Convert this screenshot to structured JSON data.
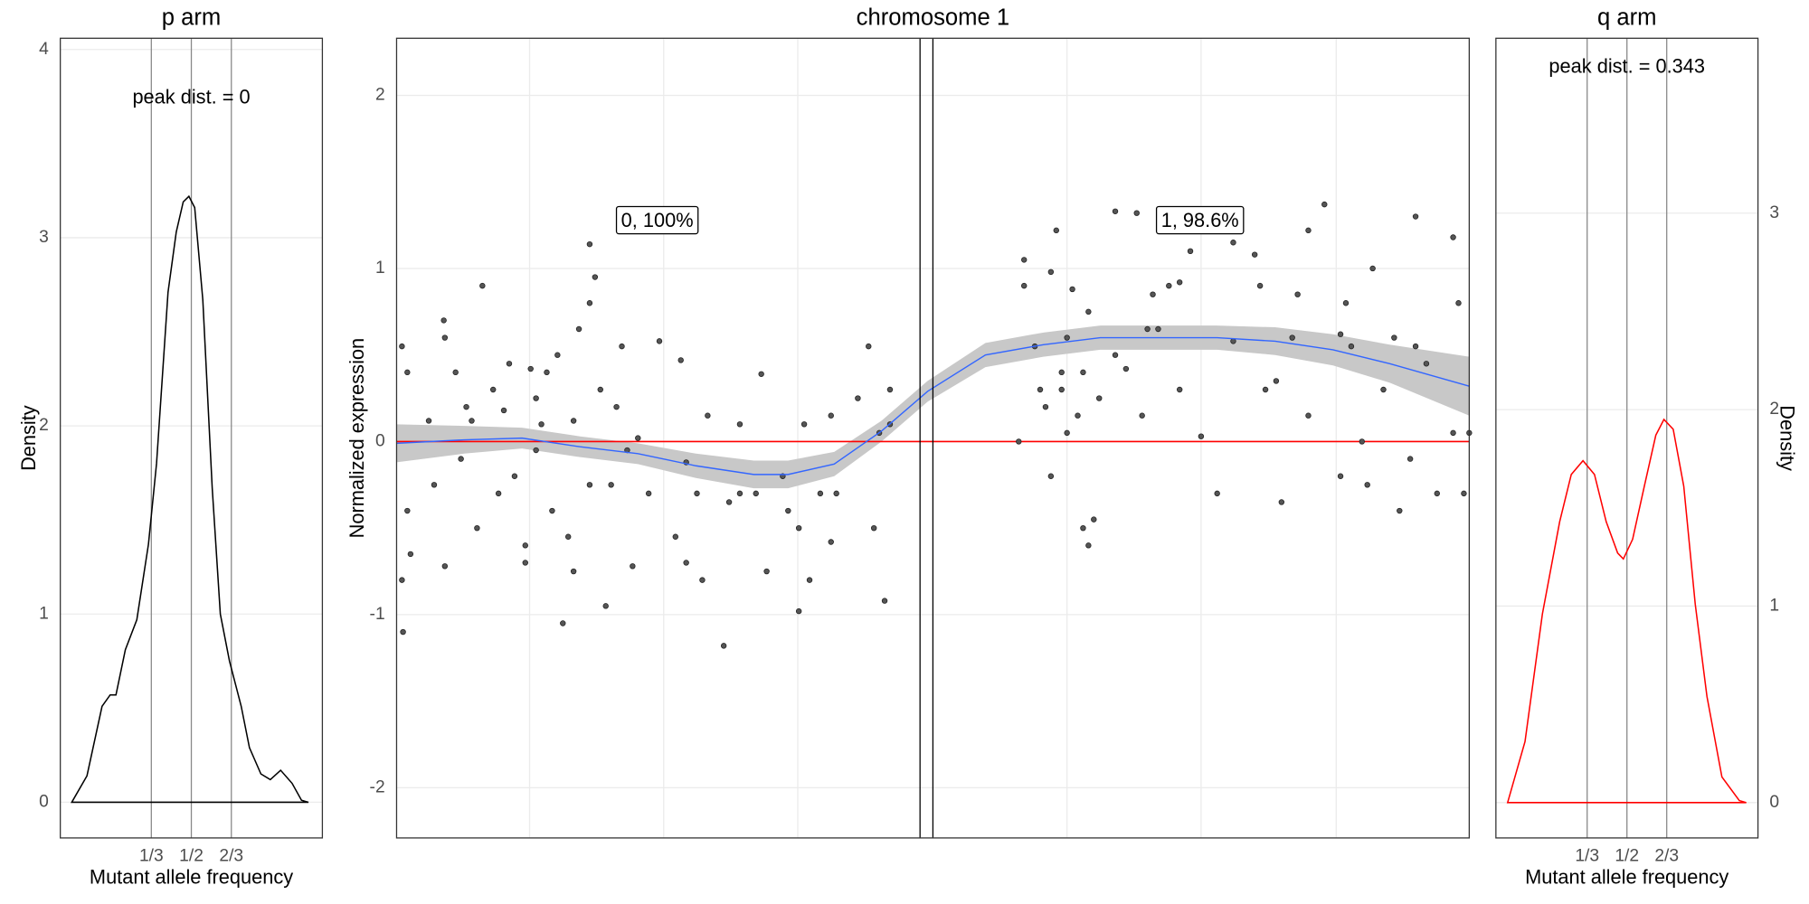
{
  "chart_data": [
    {
      "type": "line",
      "title": "p arm",
      "xlabel": "Mutant allele frequency",
      "ylabel": "Density",
      "xlim": [
        -0.046,
        1.046
      ],
      "ylim": [
        -0.19,
        4.06
      ],
      "xticks": [
        {
          "value": 0.3333,
          "label": "1/3"
        },
        {
          "value": 0.5,
          "label": "1/2"
        },
        {
          "value": 0.6667,
          "label": "2/3"
        }
      ],
      "yticks": [
        0,
        1,
        2,
        3,
        4
      ],
      "yaxis_side": "left",
      "grid": true,
      "annotations": [
        {
          "text": "peak dist. = 0",
          "x": 0.5,
          "y": 3.74
        }
      ],
      "series": [
        {
          "color": "#000000",
          "x": [
            0.002,
            0.065,
            0.128,
            0.162,
            0.186,
            0.225,
            0.273,
            0.321,
            0.355,
            0.403,
            0.437,
            0.466,
            0.49,
            0.514,
            0.548,
            0.587,
            0.621,
            0.659,
            0.708,
            0.742,
            0.79,
            0.829,
            0.872,
            0.92,
            0.959,
            0.988
          ],
          "values": [
            0,
            0.14,
            0.51,
            0.57,
            0.57,
            0.81,
            0.97,
            1.37,
            1.8,
            2.71,
            3.03,
            3.19,
            3.22,
            3.16,
            2.67,
            1.67,
            1.0,
            0.75,
            0.51,
            0.29,
            0.15,
            0.12,
            0.17,
            0.1,
            0.01,
            0
          ]
        }
      ]
    },
    {
      "type": "scatter",
      "title": "chromosome 1",
      "ylabel": "Normalized expression",
      "xlim": [
        0,
        100
      ],
      "ylim": [
        -2.29,
        2.33
      ],
      "yticks": [
        -2,
        -1,
        0,
        1,
        2
      ],
      "xgrid": [
        12.4,
        24.9,
        37.4,
        62.5,
        75,
        87.6
      ],
      "grid": true,
      "point_color": "#555555",
      "hline": 0,
      "hline_color": "#ff0000",
      "vlines": [
        48.8,
        50.0
      ],
      "annotations": [
        {
          "text": "0, 100%",
          "x": 24.3,
          "y": 1.27
        },
        {
          "text": "1, 98.6%",
          "x": 74.9,
          "y": 1.27
        }
      ],
      "x": [
        0.5,
        0.5,
        0.6,
        1,
        1,
        1.3,
        3,
        3.5,
        4.4,
        4.5,
        4.5,
        5.5,
        6,
        6.5,
        7,
        7.5,
        8,
        9,
        9.5,
        10,
        10.5,
        11,
        12,
        12,
        12.5,
        13,
        13.5,
        13,
        14,
        14.5,
        15,
        15.5,
        16,
        16.5,
        16.5,
        17,
        18,
        18,
        18,
        18.5,
        19,
        19.5,
        20,
        20.5,
        21,
        21.5,
        22,
        22.5,
        23.5,
        24.5,
        26,
        26.5,
        27,
        27,
        28,
        28.5,
        29,
        30.5,
        31,
        32,
        32,
        33.5,
        34,
        34.5,
        36,
        36.5,
        37.5,
        38,
        37.5,
        38.5,
        39.5,
        40.5,
        40.5,
        41,
        43,
        44.5,
        44,
        45,
        45.5,
        46,
        46,
        58,
        58.5,
        58.5,
        59.5,
        60,
        60.5,
        61,
        61,
        61.5,
        62,
        62,
        62.5,
        62.5,
        63,
        63.5,
        64,
        64,
        64.5,
        64.5,
        65,
        65.5,
        67,
        67,
        68,
        69,
        69.5,
        70,
        70.5,
        71,
        72,
        73,
        74,
        73,
        75,
        76.5,
        78,
        78,
        80,
        80.5,
        81,
        82,
        82.5,
        84,
        83.5,
        85,
        85,
        86.5,
        88,
        88,
        88.5,
        89,
        90,
        90.5,
        91,
        92,
        93,
        93.5,
        94.5,
        95,
        95,
        96,
        97,
        98.5,
        98.5,
        99,
        99.5,
        100
      ],
      "values": [
        0.55,
        -0.8,
        -1.1,
        0.4,
        -0.4,
        -0.65,
        0.12,
        -0.25,
        0.7,
        0.6,
        -0.72,
        0.4,
        -0.1,
        0.2,
        0.12,
        -0.5,
        0.9,
        0.3,
        -0.3,
        0.18,
        0.45,
        -0.2,
        -0.6,
        -0.7,
        0.42,
        -0.05,
        0.1,
        0.25,
        0.4,
        -0.4,
        0.5,
        -1.05,
        -0.55,
        -0.75,
        0.12,
        0.65,
        0.8,
        -0.25,
        1.14,
        0.95,
        0.3,
        -0.95,
        -0.25,
        0.2,
        0.55,
        -0.05,
        -0.72,
        0.02,
        -0.3,
        0.58,
        -0.55,
        0.47,
        -0.12,
        -0.7,
        -0.3,
        -0.8,
        0.15,
        -1.18,
        -0.35,
        -0.3,
        0.1,
        -0.3,
        0.39,
        -0.75,
        -0.2,
        -0.4,
        -0.5,
        0.1,
        -0.98,
        -0.8,
        -0.3,
        -0.58,
        0.15,
        -0.3,
        0.25,
        -0.5,
        0.55,
        0.05,
        -0.92,
        0.3,
        0.1,
        0.0,
        1.05,
        0.9,
        0.55,
        0.3,
        0.2,
        0.98,
        -0.2,
        1.22,
        0.3,
        0.4,
        0.6,
        0.05,
        0.88,
        0.15,
        0.4,
        -0.5,
        -0.6,
        0.75,
        -0.45,
        0.25,
        1.33,
        0.5,
        0.42,
        1.32,
        0.15,
        0.65,
        0.85,
        0.65,
        0.9,
        0.92,
        1.1,
        0.3,
        0.03,
        -0.3,
        0.58,
        1.15,
        1.08,
        0.9,
        0.3,
        0.35,
        -0.35,
        0.85,
        0.6,
        1.22,
        0.15,
        1.37,
        0.62,
        -0.2,
        0.8,
        0.55,
        0.0,
        -0.25,
        1.0,
        0.3,
        0.6,
        -0.4,
        -0.1,
        1.3,
        0.55,
        0.45,
        -0.3,
        0.05,
        1.18,
        0.8,
        -0.3,
        0.05
      ],
      "smooth": {
        "color": "#3366ff",
        "band_color": "#c8c8c8",
        "x": [
          0,
          6.3,
          11.7,
          17.1,
          22.5,
          27.9,
          33.3,
          36.5,
          40.8,
          45.2,
          49.5,
          54.9,
          60.3,
          65.6,
          71.1,
          76.5,
          81.9,
          87.3,
          92.6,
          100
        ],
        "values": [
          -0.01,
          0.01,
          0.02,
          -0.03,
          -0.07,
          -0.14,
          -0.19,
          -0.19,
          -0.13,
          0.06,
          0.29,
          0.5,
          0.56,
          0.6,
          0.6,
          0.6,
          0.58,
          0.53,
          0.45,
          0.32
        ],
        "lower": [
          -0.12,
          -0.07,
          -0.04,
          -0.09,
          -0.13,
          -0.21,
          -0.27,
          -0.27,
          -0.2,
          0.0,
          0.23,
          0.43,
          0.49,
          0.53,
          0.53,
          0.53,
          0.5,
          0.44,
          0.34,
          0.15
        ],
        "upper": [
          0.1,
          0.09,
          0.08,
          0.03,
          -0.01,
          -0.07,
          -0.11,
          -0.11,
          -0.06,
          0.12,
          0.35,
          0.57,
          0.63,
          0.67,
          0.67,
          0.67,
          0.66,
          0.62,
          0.56,
          0.49
        ]
      }
    },
    {
      "type": "line",
      "title": "q arm",
      "xlabel": "Mutant allele frequency",
      "ylabel": "Density",
      "xlim": [
        -0.049,
        1.049
      ],
      "ylim": [
        -0.18,
        3.89
      ],
      "xticks": [
        {
          "value": 0.3333,
          "label": "1/3"
        },
        {
          "value": 0.5,
          "label": "1/2"
        },
        {
          "value": 0.6667,
          "label": "2/3"
        }
      ],
      "yticks": [
        0,
        1,
        2,
        3
      ],
      "yaxis_side": "right",
      "grid": true,
      "annotations": [
        {
          "text": "peak dist. = 0.343",
          "x": 0.5,
          "y": 3.74
        }
      ],
      "series": [
        {
          "color": "#ff0000",
          "x": [
            0.0,
            0.073,
            0.146,
            0.218,
            0.267,
            0.316,
            0.364,
            0.413,
            0.461,
            0.485,
            0.524,
            0.573,
            0.621,
            0.655,
            0.694,
            0.738,
            0.786,
            0.835,
            0.898,
            0.971,
            1.0
          ],
          "values": [
            0,
            0.31,
            0.96,
            1.43,
            1.67,
            1.74,
            1.67,
            1.43,
            1.27,
            1.24,
            1.34,
            1.61,
            1.87,
            1.95,
            1.9,
            1.61,
            1.01,
            0.54,
            0.13,
            0.01,
            0
          ]
        }
      ]
    }
  ]
}
